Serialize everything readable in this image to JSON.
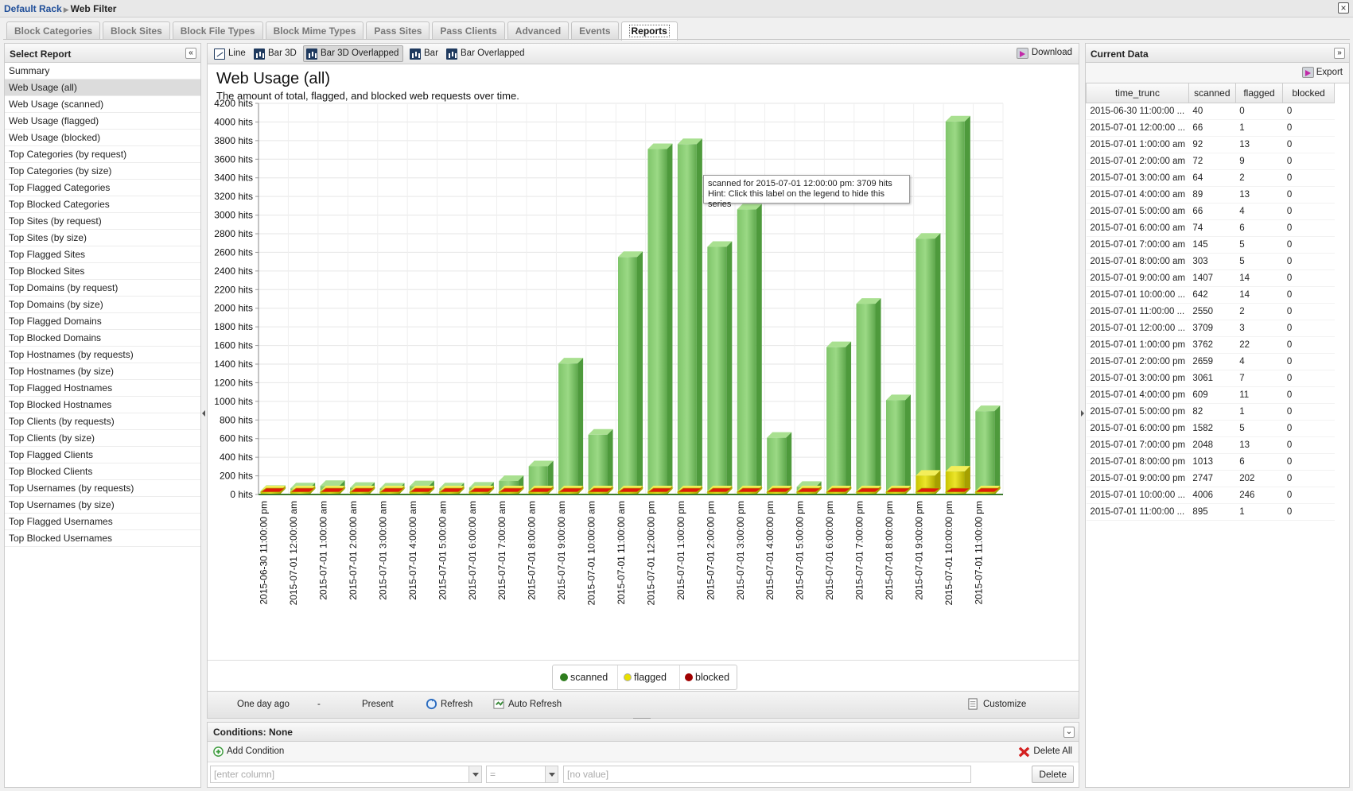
{
  "breadcrumb": {
    "parent": "Default Rack",
    "current": "Web Filter"
  },
  "tabs": [
    "Block Categories",
    "Block Sites",
    "Block File Types",
    "Block Mime Types",
    "Pass Sites",
    "Pass Clients",
    "Advanced",
    "Events",
    "Reports"
  ],
  "active_tab": "Reports",
  "left_panel": {
    "title": "Select Report",
    "items": [
      "Summary",
      "Web Usage (all)",
      "Web Usage (scanned)",
      "Web Usage (flagged)",
      "Web Usage (blocked)",
      "Top Categories (by request)",
      "Top Categories (by size)",
      "Top Flagged Categories",
      "Top Blocked Categories",
      "Top Sites (by request)",
      "Top Sites (by size)",
      "Top Flagged Sites",
      "Top Blocked Sites",
      "Top Domains (by request)",
      "Top Domains (by size)",
      "Top Flagged Domains",
      "Top Blocked Domains",
      "Top Hostnames (by requests)",
      "Top Hostnames (by size)",
      "Top Flagged Hostnames",
      "Top Blocked Hostnames",
      "Top Clients (by requests)",
      "Top Clients (by size)",
      "Top Flagged Clients",
      "Top Blocked Clients",
      "Top Usernames (by requests)",
      "Top Usernames (by size)",
      "Top Flagged Usernames",
      "Top Blocked Usernames"
    ],
    "selected": "Web Usage (all)"
  },
  "toolbar": {
    "views": [
      "Line",
      "Bar 3D",
      "Bar 3D Overlapped",
      "Bar",
      "Bar Overlapped"
    ],
    "active_view": "Bar 3D Overlapped",
    "download": "Download"
  },
  "report": {
    "title": "Web Usage (all)",
    "subtitle": "The amount of total, flagged, and blocked web requests over time."
  },
  "tooltip": {
    "line1": "scanned for 2015-07-01 12:00:00 pm: 3709 hits",
    "line2": "Hint: Click this label on the legend to hide this series"
  },
  "chart_data": {
    "type": "bar",
    "style": "3d-overlapped",
    "categories": [
      "2015-06-30 11:00:00 pm",
      "2015-07-01 12:00:00 am",
      "2015-07-01 1:00:00 am",
      "2015-07-01 2:00:00 am",
      "2015-07-01 3:00:00 am",
      "2015-07-01 4:00:00 am",
      "2015-07-01 5:00:00 am",
      "2015-07-01 6:00:00 am",
      "2015-07-01 7:00:00 am",
      "2015-07-01 8:00:00 am",
      "2015-07-01 9:00:00 am",
      "2015-07-01 10:00:00 am",
      "2015-07-01 11:00:00 am",
      "2015-07-01 12:00:00 pm",
      "2015-07-01 1:00:00 pm",
      "2015-07-01 2:00:00 pm",
      "2015-07-01 3:00:00 pm",
      "2015-07-01 4:00:00 pm",
      "2015-07-01 5:00:00 pm",
      "2015-07-01 6:00:00 pm",
      "2015-07-01 7:00:00 pm",
      "2015-07-01 8:00:00 pm",
      "2015-07-01 9:00:00 pm",
      "2015-07-01 10:00:00 pm",
      "2015-07-01 11:00:00 pm"
    ],
    "series": [
      {
        "name": "scanned",
        "color": "#2e7d1e",
        "values": [
          40,
          66,
          92,
          72,
          64,
          89,
          66,
          74,
          145,
          303,
          1407,
          642,
          2550,
          3709,
          3762,
          2659,
          3061,
          609,
          82,
          1582,
          2048,
          1013,
          2747,
          4006,
          895
        ]
      },
      {
        "name": "flagged",
        "color": "#e8e000",
        "values": [
          0,
          1,
          13,
          9,
          2,
          13,
          4,
          6,
          5,
          5,
          14,
          14,
          2,
          3,
          22,
          4,
          7,
          11,
          1,
          5,
          13,
          6,
          202,
          246,
          1
        ]
      },
      {
        "name": "blocked",
        "color": "#a00000",
        "values": [
          0,
          0,
          0,
          0,
          0,
          0,
          0,
          0,
          0,
          0,
          0,
          0,
          0,
          0,
          0,
          0,
          0,
          0,
          0,
          0,
          0,
          0,
          0,
          0,
          0
        ]
      }
    ],
    "y_ticks": [
      "0 hits",
      "200 hits",
      "400 hits",
      "600 hits",
      "800 hits",
      "1000 hits",
      "1200 hits",
      "1400 hits",
      "1600 hits",
      "1800 hits",
      "2000 hits",
      "2200 hits",
      "2400 hits",
      "2600 hits",
      "2800 hits",
      "3000 hits",
      "3200 hits",
      "3400 hits",
      "3600 hits",
      "3800 hits",
      "4000 hits",
      "4200 hits"
    ],
    "ylim": [
      0,
      4200
    ],
    "grid": true,
    "legend": "bottom-center"
  },
  "footer": {
    "from": "One day ago",
    "dash": "-",
    "to": "Present",
    "refresh": "Refresh",
    "auto_refresh": "Auto Refresh",
    "customize": "Customize"
  },
  "conditions": {
    "title": "Conditions: None",
    "add": "Add Condition",
    "delete_all": "Delete All",
    "column_placeholder": "[enter column]",
    "operator": "=",
    "value_placeholder": "[no value]",
    "delete": "Delete"
  },
  "right_panel": {
    "title": "Current Data",
    "export": "Export",
    "columns": [
      "time_trunc",
      "scanned",
      "flagged",
      "blocked"
    ],
    "rows": [
      [
        "2015-06-30 11:00:00 ...",
        "40",
        "0",
        "0"
      ],
      [
        "2015-07-01 12:00:00 ...",
        "66",
        "1",
        "0"
      ],
      [
        "2015-07-01 1:00:00 am",
        "92",
        "13",
        "0"
      ],
      [
        "2015-07-01 2:00:00 am",
        "72",
        "9",
        "0"
      ],
      [
        "2015-07-01 3:00:00 am",
        "64",
        "2",
        "0"
      ],
      [
        "2015-07-01 4:00:00 am",
        "89",
        "13",
        "0"
      ],
      [
        "2015-07-01 5:00:00 am",
        "66",
        "4",
        "0"
      ],
      [
        "2015-07-01 6:00:00 am",
        "74",
        "6",
        "0"
      ],
      [
        "2015-07-01 7:00:00 am",
        "145",
        "5",
        "0"
      ],
      [
        "2015-07-01 8:00:00 am",
        "303",
        "5",
        "0"
      ],
      [
        "2015-07-01 9:00:00 am",
        "1407",
        "14",
        "0"
      ],
      [
        "2015-07-01 10:00:00 ...",
        "642",
        "14",
        "0"
      ],
      [
        "2015-07-01 11:00:00 ...",
        "2550",
        "2",
        "0"
      ],
      [
        "2015-07-01 12:00:00 ...",
        "3709",
        "3",
        "0"
      ],
      [
        "2015-07-01 1:00:00 pm",
        "3762",
        "22",
        "0"
      ],
      [
        "2015-07-01 2:00:00 pm",
        "2659",
        "4",
        "0"
      ],
      [
        "2015-07-01 3:00:00 pm",
        "3061",
        "7",
        "0"
      ],
      [
        "2015-07-01 4:00:00 pm",
        "609",
        "11",
        "0"
      ],
      [
        "2015-07-01 5:00:00 pm",
        "82",
        "1",
        "0"
      ],
      [
        "2015-07-01 6:00:00 pm",
        "1582",
        "5",
        "0"
      ],
      [
        "2015-07-01 7:00:00 pm",
        "2048",
        "13",
        "0"
      ],
      [
        "2015-07-01 8:00:00 pm",
        "1013",
        "6",
        "0"
      ],
      [
        "2015-07-01 9:00:00 pm",
        "2747",
        "202",
        "0"
      ],
      [
        "2015-07-01 10:00:00 ...",
        "4006",
        "246",
        "0"
      ],
      [
        "2015-07-01 11:00:00 ...",
        "895",
        "1",
        "0"
      ]
    ]
  }
}
